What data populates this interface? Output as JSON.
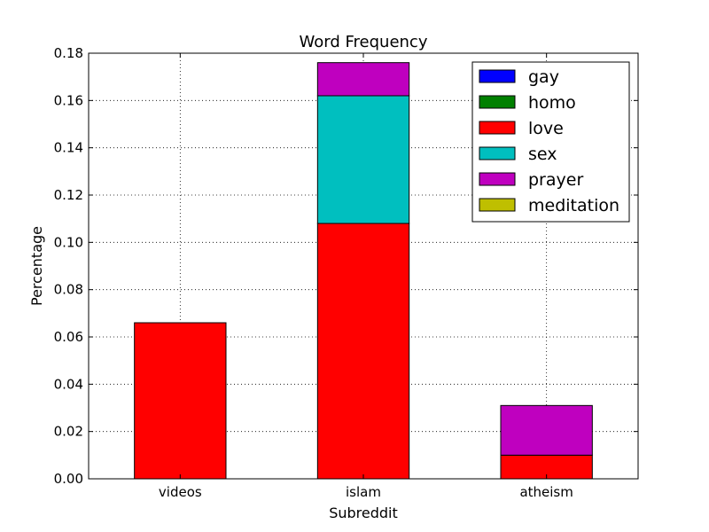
{
  "chart_data": {
    "type": "bar",
    "stacked": true,
    "title": "Word Frequency",
    "xlabel": "Subreddit",
    "ylabel": "Percentage",
    "categories": [
      "videos",
      "islam",
      "atheism"
    ],
    "ylim": [
      0,
      0.18
    ],
    "yticks": [
      0.0,
      0.02,
      0.04,
      0.06,
      0.08,
      0.1,
      0.12,
      0.14,
      0.16,
      0.18
    ],
    "ytick_labels": [
      "0.00",
      "0.02",
      "0.04",
      "0.06",
      "0.08",
      "0.10",
      "0.12",
      "0.14",
      "0.16",
      "0.18"
    ],
    "grid": true,
    "legend_position": "top-right",
    "series": [
      {
        "name": "gay",
        "color": "#0000ff",
        "values": [
          0,
          0,
          0
        ]
      },
      {
        "name": "homo",
        "color": "#008000",
        "values": [
          0,
          0,
          0
        ]
      },
      {
        "name": "love",
        "color": "#ff0000",
        "values": [
          0.066,
          0.108,
          0.01
        ]
      },
      {
        "name": "sex",
        "color": "#00bfbf",
        "values": [
          0,
          0.054,
          0
        ]
      },
      {
        "name": "prayer",
        "color": "#bf00bf",
        "values": [
          0,
          0.014,
          0.021
        ]
      },
      {
        "name": "meditation",
        "color": "#bfbf00",
        "values": [
          0,
          0,
          0
        ]
      }
    ]
  }
}
